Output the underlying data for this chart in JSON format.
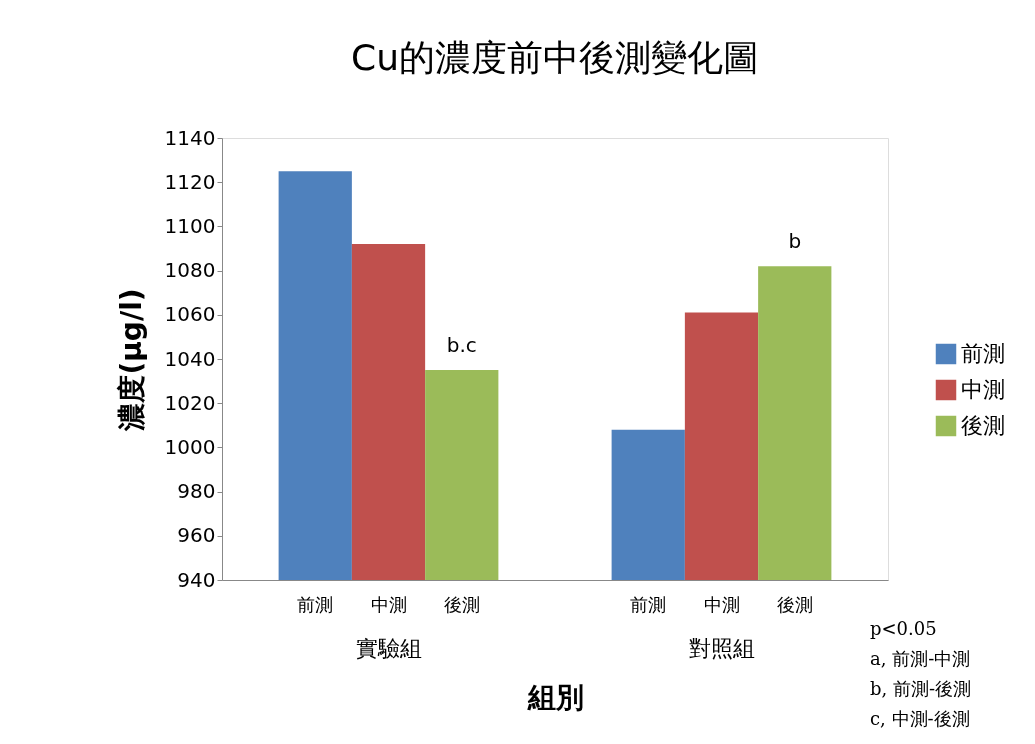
{
  "chart_data": {
    "type": "bar",
    "title": "Cu的濃度前中後測變化圖",
    "xlabel": "組別",
    "ylabel": "濃度(μg/l)",
    "categories": [
      "實驗組",
      "對照組"
    ],
    "series": [
      {
        "name": "前測",
        "color": "#4f81bd",
        "values": [
          1125,
          1008
        ]
      },
      {
        "name": "中測",
        "color": "#c0504d",
        "values": [
          1092,
          1061
        ]
      },
      {
        "name": "後測",
        "color": "#9bbb59",
        "values": [
          1035,
          1082
        ]
      }
    ],
    "ylim": [
      940,
      1140
    ],
    "yticks": [
      940,
      960,
      980,
      1000,
      1020,
      1040,
      1060,
      1080,
      1100,
      1120,
      1140
    ],
    "grid": false,
    "legend": "right",
    "annotations": [
      "b.c",
      "b",
      "p<0.05",
      "a, 前測-中測",
      "b, 前測-後測",
      "c, 中測-後測"
    ]
  }
}
